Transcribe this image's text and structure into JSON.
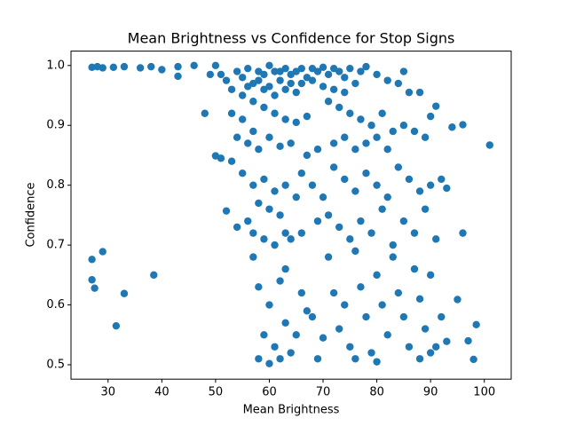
{
  "chart_data": {
    "type": "scatter",
    "title": "Mean Brightness vs Confidence for Stop Signs",
    "xlabel": "Mean Brightness",
    "ylabel": "Confidence",
    "color": "#1f77b4",
    "xlim": [
      23.1,
      105.0
    ],
    "ylim": [
      0.476,
      1.024
    ],
    "xticks": [
      30,
      40,
      50,
      60,
      70,
      80,
      90,
      100
    ],
    "yticks": [
      0.5,
      0.6,
      0.7,
      0.8,
      0.9,
      {
        "value": 1,
        "label": "1.0"
      }
    ],
    "x": [
      27,
      28,
      29,
      31,
      33,
      36,
      38,
      40,
      43,
      43,
      46,
      50,
      27,
      27,
      27.5,
      29,
      31.5,
      33,
      38.5,
      48,
      50,
      52,
      101,
      98.5,
      98,
      97,
      96,
      96,
      95,
      93,
      94,
      91,
      54,
      55,
      56,
      57,
      58,
      59,
      60,
      61,
      62,
      63,
      64,
      65,
      66,
      67,
      68,
      69,
      70,
      71,
      72,
      73,
      74,
      75,
      76,
      77,
      78,
      53,
      55,
      57,
      59,
      61,
      63,
      65,
      58,
      60,
      62,
      56,
      64,
      52,
      51,
      49,
      66,
      68,
      70,
      72,
      74,
      80,
      82,
      84,
      86,
      88,
      85,
      53,
      55,
      57,
      59,
      61,
      63,
      65,
      67,
      54,
      56,
      58,
      60,
      62,
      64,
      71,
      73,
      75,
      77,
      79,
      81,
      83,
      85,
      87,
      89,
      90,
      72,
      74,
      76,
      78,
      80,
      53,
      51,
      67,
      69,
      82,
      55,
      57,
      59,
      61,
      63,
      58,
      60,
      62,
      56,
      54,
      57,
      59,
      61,
      63,
      65,
      66,
      68,
      70,
      72,
      74,
      76,
      78,
      80,
      82,
      84,
      86,
      88,
      90,
      92,
      71,
      73,
      75,
      77,
      79,
      81,
      83,
      85,
      87,
      89,
      91,
      93,
      69,
      66,
      64,
      57,
      58,
      60,
      62,
      63,
      59,
      61,
      58,
      60,
      62,
      64,
      65,
      67,
      69,
      71,
      72,
      73,
      74,
      75,
      76,
      77,
      78,
      79,
      80,
      81,
      82,
      83,
      84,
      85,
      86,
      87,
      88,
      89,
      90,
      90,
      92,
      91,
      88,
      63,
      66,
      68,
      70,
      76,
      80
    ],
    "y": [
      0.997,
      0.998,
      0.996,
      0.997,
      0.998,
      0.996,
      0.998,
      0.993,
      0.998,
      0.982,
      1.0,
      1.0,
      0.676,
      0.642,
      0.628,
      0.689,
      0.565,
      0.619,
      0.65,
      0.92,
      0.849,
      0.757,
      0.867,
      0.567,
      0.509,
      0.54,
      0.72,
      0.901,
      0.609,
      0.539,
      0.897,
      0.932,
      0.99,
      0.98,
      0.995,
      0.97,
      0.99,
      0.985,
      1.0,
      0.99,
      0.975,
      0.995,
      0.985,
      0.99,
      0.995,
      0.98,
      0.995,
      0.99,
      0.997,
      0.985,
      0.995,
      0.99,
      0.98,
      0.995,
      0.97,
      0.99,
      0.998,
      0.96,
      0.95,
      0.94,
      0.96,
      0.95,
      0.96,
      0.955,
      0.975,
      0.965,
      0.99,
      0.965,
      0.97,
      0.975,
      0.985,
      0.985,
      0.97,
      0.975,
      0.965,
      0.96,
      0.955,
      0.985,
      0.975,
      0.97,
      0.955,
      0.955,
      0.99,
      0.92,
      0.91,
      0.89,
      0.93,
      0.92,
      0.91,
      0.905,
      0.915,
      0.88,
      0.87,
      0.86,
      0.88,
      0.865,
      0.87,
      0.94,
      0.93,
      0.92,
      0.91,
      0.9,
      0.92,
      0.89,
      0.9,
      0.89,
      0.88,
      0.915,
      0.87,
      0.88,
      0.86,
      0.87,
      0.88,
      0.84,
      0.845,
      0.85,
      0.86,
      0.86,
      0.82,
      0.8,
      0.81,
      0.79,
      0.8,
      0.77,
      0.76,
      0.75,
      0.74,
      0.73,
      0.72,
      0.71,
      0.7,
      0.72,
      0.78,
      0.82,
      0.8,
      0.78,
      0.83,
      0.81,
      0.79,
      0.82,
      0.8,
      0.78,
      0.83,
      0.81,
      0.79,
      0.8,
      0.81,
      0.75,
      0.73,
      0.71,
      0.74,
      0.72,
      0.76,
      0.7,
      0.74,
      0.72,
      0.76,
      0.71,
      0.795,
      0.74,
      0.72,
      0.71,
      0.68,
      0.63,
      0.6,
      0.64,
      0.57,
      0.55,
      0.53,
      0.51,
      0.502,
      0.51,
      0.52,
      0.55,
      0.59,
      0.51,
      0.68,
      0.62,
      0.56,
      0.6,
      0.53,
      0.69,
      0.63,
      0.58,
      0.52,
      0.65,
      0.6,
      0.55,
      0.68,
      0.62,
      0.58,
      0.53,
      0.66,
      0.61,
      0.56,
      0.52,
      0.65,
      0.58,
      0.53,
      0.51,
      0.66,
      0.62,
      0.58,
      0.545,
      0.51,
      0.505
    ]
  }
}
